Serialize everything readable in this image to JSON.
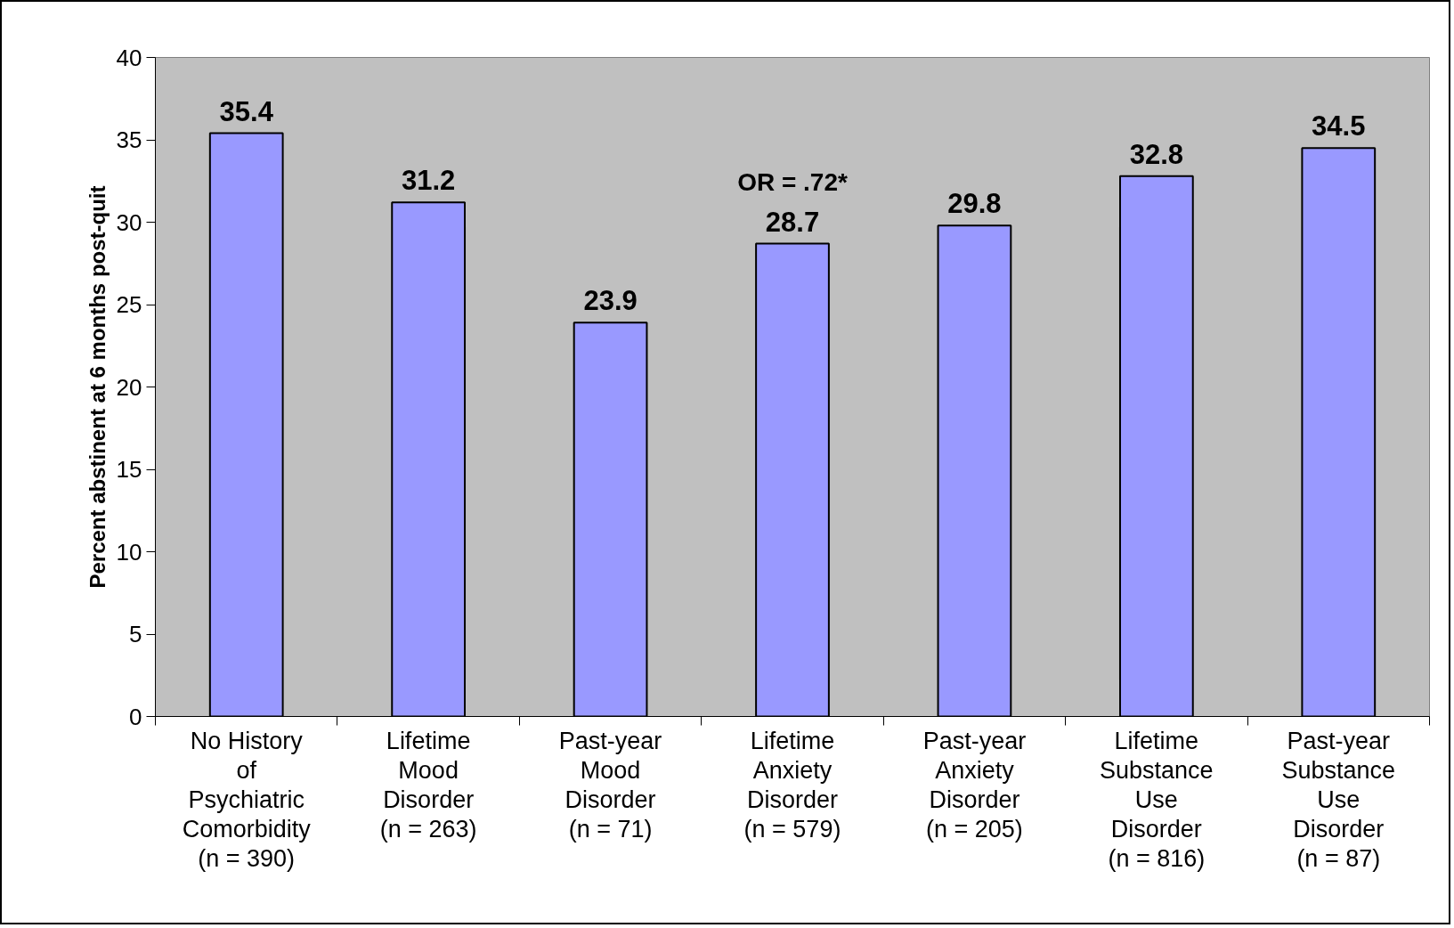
{
  "chart_data": {
    "type": "bar",
    "ylabel": "Percent abstinent at 6 months post-quit",
    "categories": [
      "No History\nof\nPsychiatric\nComorbidity\n(n = 390)",
      "Lifetime\nMood\nDisorder\n(n = 263)",
      "Past-year\nMood\nDisorder\n(n = 71)",
      "Lifetime\nAnxiety\nDisorder\n(n = 579)",
      "Past-year\nAnxiety\nDisorder\n(n = 205)",
      "Lifetime\nSubstance\nUse\nDisorder\n(n = 816)",
      "Past-year\nSubstance\nUse\nDisorder\n(n = 87)"
    ],
    "values": [
      35.4,
      31.2,
      23.9,
      28.7,
      29.8,
      32.8,
      34.5
    ],
    "color": "#9999ff",
    "ylim": [
      0,
      40
    ],
    "yticks": [
      0,
      5,
      10,
      15,
      20,
      25,
      30,
      35,
      40
    ],
    "data_labels": true,
    "grid": false,
    "annotations": [
      "OR = .72*"
    ]
  }
}
